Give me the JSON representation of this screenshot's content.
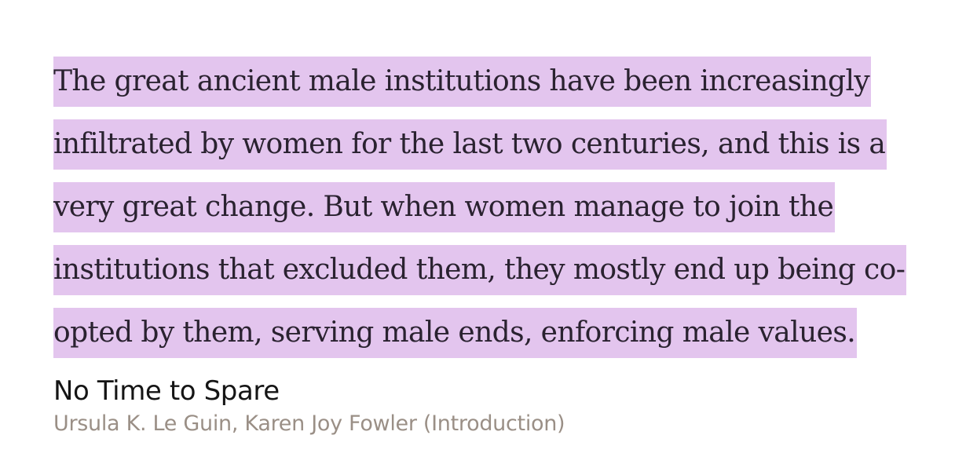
{
  "highlight": {
    "color": "#e3c5ee",
    "lines": [
      "The great ancient male institutions have been increasingly",
      "infiltrated by women for the last two centuries, and this is a",
      "very great change. But when women manage to join the",
      "institutions that excluded them, they mostly end up being co-",
      "opted by them, serving male ends, enforcing male values."
    ]
  },
  "book": {
    "title": "No Time to Spare",
    "author": "Ursula K. Le Guin, Karen Joy Fowler (Introduction)"
  }
}
